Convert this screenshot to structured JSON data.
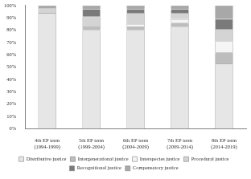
{
  "chart_data": {
    "type": "bar",
    "stacked": true,
    "grid": false,
    "legend": "bottom",
    "categories": [
      "4th EP term (1994-1999)",
      "5th EP term (1999-2004)",
      "6th EP term (2004-2009)",
      "7th EP term (2009-2014)",
      "8th EP term (2014-2019)"
    ],
    "ylim": [
      0,
      100
    ],
    "yticks": [
      {
        "value": 0,
        "label": "0%"
      },
      {
        "value": 10,
        "label": "10%"
      },
      {
        "value": 20,
        "label": "20%"
      },
      {
        "value": 30,
        "label": "30%"
      },
      {
        "value": 40,
        "label": "40%"
      },
      {
        "value": 50,
        "label": "50%"
      },
      {
        "value": 60,
        "label": "60%"
      },
      {
        "value": 70,
        "label": "70%"
      },
      {
        "value": 80,
        "label": "80%"
      },
      {
        "value": 90,
        "label": "90%"
      },
      {
        "value": 100,
        "label": "100%"
      }
    ],
    "series": [
      {
        "name": "Distributive justice",
        "color": "#e6e6e6",
        "values": [
          94,
          80,
          80,
          83,
          53
        ]
      },
      {
        "name": "Intergenerational justice",
        "color": "#bdbdbd",
        "values": [
          0,
          3,
          3,
          3,
          9
        ]
      },
      {
        "name": "Interspecies justice",
        "color": "#f5f5f5",
        "values": [
          0,
          0,
          2,
          3,
          9
        ]
      },
      {
        "name": "Procedural justice",
        "color": "#d4d4d4",
        "values": [
          4,
          8,
          9,
          5,
          10
        ]
      },
      {
        "name": "Recognitional justice",
        "color": "#7a7a7a",
        "values": [
          0,
          6,
          3,
          3,
          8
        ]
      },
      {
        "name": "Compensatory justice",
        "color": "#a8a8a8",
        "values": [
          2,
          3,
          3,
          3,
          11
        ]
      }
    ]
  }
}
